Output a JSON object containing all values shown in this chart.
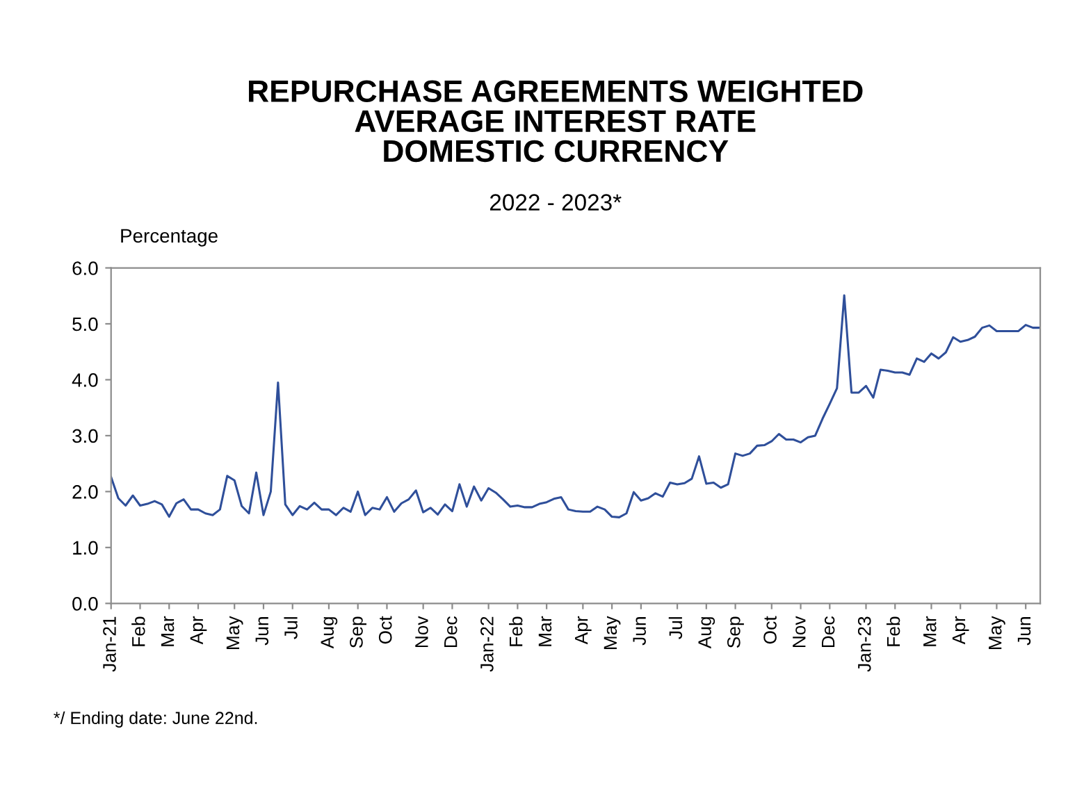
{
  "chart_data": {
    "type": "line",
    "title": "REPURCHASE AGREEMENTS WEIGHTED\nAVERAGE INTEREST RATE\nDOMESTIC CURRENCY",
    "subtitle": "2022 - 2023*",
    "ylabel": "Percentage",
    "annotations": [
      "*/ Ending date: June 22nd."
    ],
    "categories": [
      "Jan-21",
      null,
      null,
      null,
      "Feb",
      null,
      null,
      null,
      "Mar",
      null,
      null,
      null,
      "Apr",
      null,
      null,
      null,
      null,
      "May",
      null,
      null,
      null,
      "Jun",
      null,
      null,
      null,
      "Jul",
      null,
      null,
      null,
      null,
      "Aug",
      null,
      null,
      null,
      "Sep",
      null,
      null,
      null,
      "Oct",
      null,
      null,
      null,
      null,
      "Nov",
      null,
      null,
      null,
      "Dec",
      null,
      null,
      null,
      null,
      "Jan-22",
      null,
      null,
      null,
      "Feb",
      null,
      null,
      null,
      "Mar",
      null,
      null,
      null,
      null,
      "Apr",
      null,
      null,
      null,
      "May",
      null,
      null,
      null,
      "Jun",
      null,
      null,
      null,
      null,
      "Jul",
      null,
      null,
      null,
      "Aug",
      null,
      null,
      null,
      "Sep",
      null,
      null,
      null,
      null,
      "Oct",
      null,
      null,
      null,
      "Nov",
      null,
      null,
      null,
      "Dec",
      null,
      null,
      null,
      null,
      "Jan-23",
      null,
      null,
      null,
      "Feb",
      null,
      null,
      null,
      null,
      "Mar",
      null,
      null,
      null,
      "Apr",
      null,
      null,
      null,
      null,
      "May",
      null,
      null,
      null,
      "Jun",
      null,
      null
    ],
    "series": [
      {
        "color": "#2f4f9a",
        "values": [
          2.26,
          1.88,
          1.75,
          1.93,
          1.75,
          1.78,
          1.83,
          1.77,
          1.55,
          1.79,
          1.86,
          1.68,
          1.68,
          1.61,
          1.58,
          1.68,
          2.28,
          2.2,
          1.74,
          1.61,
          2.34,
          1.58,
          2.0,
          3.95,
          1.77,
          1.58,
          1.74,
          1.68,
          1.8,
          1.68,
          1.68,
          1.58,
          1.71,
          1.64,
          2.0,
          1.58,
          1.71,
          1.68,
          1.9,
          1.64,
          1.79,
          1.86,
          2.02,
          1.63,
          1.71,
          1.59,
          1.77,
          1.65,
          2.13,
          1.73,
          2.09,
          1.84,
          2.06,
          1.98,
          1.86,
          1.73,
          1.75,
          1.72,
          1.72,
          1.78,
          1.81,
          1.87,
          1.9,
          1.68,
          1.65,
          1.64,
          1.64,
          1.73,
          1.68,
          1.55,
          1.54,
          1.61,
          1.99,
          1.84,
          1.88,
          1.97,
          1.91,
          2.16,
          2.13,
          2.15,
          2.23,
          2.63,
          2.14,
          2.16,
          2.07,
          2.13,
          2.68,
          2.64,
          2.68,
          2.82,
          2.83,
          2.9,
          3.03,
          2.93,
          2.93,
          2.88,
          2.97,
          3.0,
          3.3,
          3.57,
          3.85,
          5.51,
          3.77,
          3.77,
          3.89,
          3.68,
          4.18,
          4.16,
          4.13,
          4.13,
          4.09,
          4.38,
          4.32,
          4.47,
          4.38,
          4.49,
          4.76,
          4.68,
          4.71,
          4.77,
          4.93,
          4.97,
          4.87,
          4.87,
          4.87,
          4.87,
          4.98,
          4.93,
          4.93
        ]
      }
    ],
    "ylim": [
      0,
      6
    ],
    "yticks": [
      {
        "value": 0,
        "label": "0.0"
      },
      {
        "value": 1,
        "label": "1.0"
      },
      {
        "value": 2,
        "label": "2.0"
      },
      {
        "value": 3,
        "label": "3.0"
      },
      {
        "value": 4,
        "label": "4.0"
      },
      {
        "value": 5,
        "label": "5.0"
      },
      {
        "value": 6,
        "label": "6.0"
      }
    ],
    "grid": false,
    "marker": "none",
    "line_style": "solid"
  }
}
